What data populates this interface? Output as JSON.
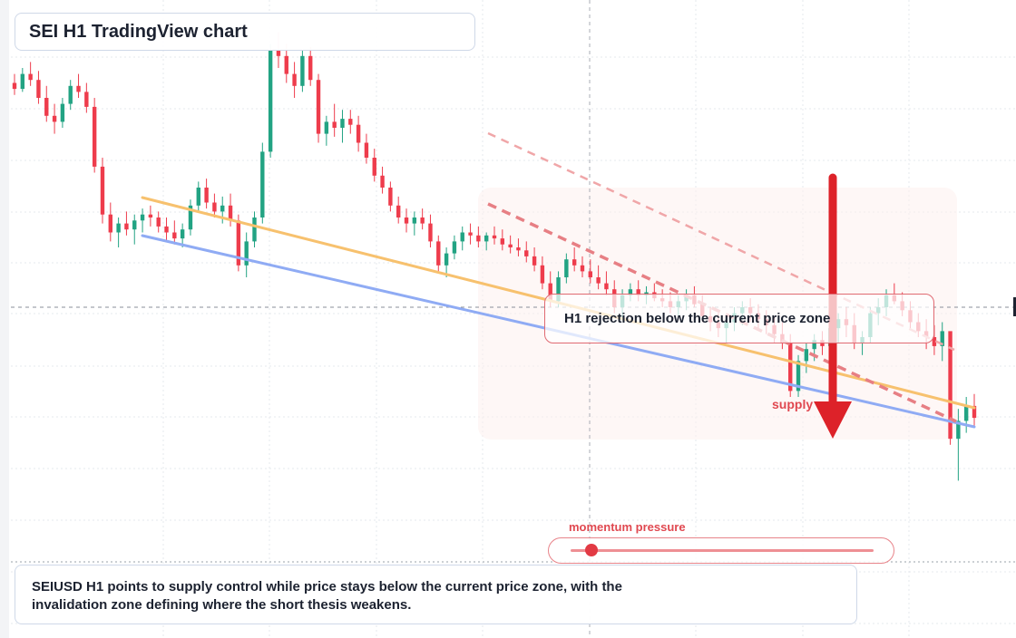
{
  "title": "SEI H1 TradingView chart",
  "annotations": {
    "zone_label": "H1 rejection below the current price zone",
    "supply_label": "supply",
    "momentum_label": "momentum pressure",
    "momentum_level": 0.07
  },
  "caption": "SEIUSD H1 points to supply control while price stays below the current price zone, with the invalidation zone defining where the short thesis weakens.",
  "colors": {
    "bull": "#22a383",
    "bear": "#ee3c4c",
    "trend_orange": "#f7c16e",
    "trend_blue": "#8fabf4",
    "channel_dash": "#e87f84",
    "arrow": "#dd2229",
    "grid": "#e5e8ee"
  },
  "chart_data": {
    "type": "candlestick",
    "symbol": "SEIUSD",
    "timeframe": "H1",
    "title": "SEI H1 TradingView chart",
    "current_price_line": 0.0,
    "ohlc_relative": [
      [
        0.75,
        0.78,
        0.71,
        0.73
      ],
      [
        0.73,
        0.8,
        0.72,
        0.78
      ],
      [
        0.78,
        0.82,
        0.74,
        0.76
      ],
      [
        0.76,
        0.79,
        0.68,
        0.7
      ],
      [
        0.7,
        0.74,
        0.62,
        0.64
      ],
      [
        0.64,
        0.68,
        0.58,
        0.62
      ],
      [
        0.62,
        0.7,
        0.6,
        0.68
      ],
      [
        0.68,
        0.76,
        0.66,
        0.74
      ],
      [
        0.74,
        0.78,
        0.7,
        0.72
      ],
      [
        0.72,
        0.75,
        0.65,
        0.67
      ],
      [
        0.67,
        0.7,
        0.45,
        0.47
      ],
      [
        0.47,
        0.5,
        0.28,
        0.31
      ],
      [
        0.31,
        0.35,
        0.22,
        0.25
      ],
      [
        0.25,
        0.3,
        0.2,
        0.28
      ],
      [
        0.28,
        0.32,
        0.24,
        0.26
      ],
      [
        0.26,
        0.31,
        0.21,
        0.29
      ],
      [
        0.29,
        0.33,
        0.25,
        0.31
      ],
      [
        0.31,
        0.34,
        0.27,
        0.3
      ],
      [
        0.3,
        0.32,
        0.25,
        0.27
      ],
      [
        0.27,
        0.3,
        0.22,
        0.25
      ],
      [
        0.25,
        0.29,
        0.21,
        0.23
      ],
      [
        0.23,
        0.28,
        0.2,
        0.26
      ],
      [
        0.26,
        0.36,
        0.24,
        0.34
      ],
      [
        0.34,
        0.42,
        0.32,
        0.4
      ],
      [
        0.4,
        0.43,
        0.33,
        0.35
      ],
      [
        0.35,
        0.38,
        0.3,
        0.32
      ],
      [
        0.32,
        0.37,
        0.28,
        0.34
      ],
      [
        0.34,
        0.38,
        0.27,
        0.29
      ],
      [
        0.29,
        0.31,
        0.12,
        0.14
      ],
      [
        0.14,
        0.25,
        0.1,
        0.22
      ],
      [
        0.22,
        0.32,
        0.2,
        0.3
      ],
      [
        0.3,
        0.55,
        0.28,
        0.52
      ],
      [
        0.52,
        0.88,
        0.5,
        0.86
      ],
      [
        0.86,
        0.92,
        0.8,
        0.84
      ],
      [
        0.84,
        0.88,
        0.75,
        0.78
      ],
      [
        0.78,
        0.82,
        0.7,
        0.74
      ],
      [
        0.74,
        0.86,
        0.72,
        0.84
      ],
      [
        0.84,
        0.87,
        0.74,
        0.76
      ],
      [
        0.76,
        0.78,
        0.55,
        0.58
      ],
      [
        0.58,
        0.64,
        0.54,
        0.62
      ],
      [
        0.62,
        0.68,
        0.57,
        0.6
      ],
      [
        0.6,
        0.66,
        0.55,
        0.63
      ],
      [
        0.63,
        0.66,
        0.58,
        0.61
      ],
      [
        0.61,
        0.64,
        0.52,
        0.55
      ],
      [
        0.55,
        0.58,
        0.48,
        0.5
      ],
      [
        0.5,
        0.53,
        0.42,
        0.44
      ],
      [
        0.44,
        0.47,
        0.38,
        0.4
      ],
      [
        0.4,
        0.42,
        0.32,
        0.34
      ],
      [
        0.34,
        0.37,
        0.28,
        0.3
      ],
      [
        0.3,
        0.33,
        0.25,
        0.28
      ],
      [
        0.28,
        0.32,
        0.24,
        0.3
      ],
      [
        0.3,
        0.33,
        0.26,
        0.28
      ],
      [
        0.28,
        0.31,
        0.2,
        0.22
      ],
      [
        0.22,
        0.24,
        0.12,
        0.14
      ],
      [
        0.14,
        0.2,
        0.1,
        0.18
      ],
      [
        0.18,
        0.24,
        0.16,
        0.22
      ],
      [
        0.22,
        0.27,
        0.19,
        0.25
      ],
      [
        0.25,
        0.28,
        0.21,
        0.24
      ],
      [
        0.24,
        0.27,
        0.2,
        0.22
      ],
      [
        0.22,
        0.25,
        0.19,
        0.24
      ],
      [
        0.24,
        0.27,
        0.21,
        0.23
      ],
      [
        0.23,
        0.26,
        0.19,
        0.21
      ],
      [
        0.21,
        0.24,
        0.18,
        0.2
      ],
      [
        0.2,
        0.23,
        0.17,
        0.19
      ],
      [
        0.19,
        0.22,
        0.15,
        0.17
      ],
      [
        0.17,
        0.2,
        0.12,
        0.14
      ],
      [
        0.14,
        0.17,
        0.06,
        0.08
      ],
      [
        0.08,
        0.12,
        0.0,
        0.02
      ],
      [
        0.02,
        0.12,
        0.0,
        0.1
      ],
      [
        0.1,
        0.18,
        0.08,
        0.16
      ],
      [
        0.16,
        0.2,
        0.12,
        0.14
      ],
      [
        0.14,
        0.17,
        0.1,
        0.12
      ],
      [
        0.12,
        0.16,
        0.08,
        0.1
      ],
      [
        0.1,
        0.14,
        0.06,
        0.08
      ],
      [
        0.08,
        0.12,
        0.04,
        0.06
      ],
      [
        0.06,
        0.09,
        -0.02,
        0.0
      ],
      [
        0.0,
        0.06,
        -0.04,
        0.04
      ],
      [
        0.04,
        0.08,
        0.02,
        0.06
      ],
      [
        0.06,
        0.09,
        0.02,
        0.04
      ],
      [
        0.04,
        0.07,
        0.01,
        0.05
      ],
      [
        0.05,
        0.08,
        0.02,
        0.03
      ],
      [
        0.03,
        0.06,
        0.0,
        0.02
      ],
      [
        0.02,
        0.05,
        -0.02,
        0.0
      ],
      [
        0.0,
        0.04,
        -0.03,
        0.02
      ],
      [
        0.02,
        0.06,
        -0.01,
        0.04
      ],
      [
        0.04,
        0.07,
        0.0,
        0.01
      ],
      [
        0.01,
        0.04,
        -0.05,
        -0.03
      ],
      [
        -0.03,
        0.0,
        -0.08,
        -0.05
      ],
      [
        -0.05,
        -0.02,
        -0.1,
        -0.07
      ],
      [
        -0.07,
        -0.03,
        -0.12,
        -0.05
      ],
      [
        -0.05,
        0.0,
        -0.08,
        -0.02
      ],
      [
        -0.02,
        0.02,
        -0.06,
        0.0
      ],
      [
        0.0,
        0.03,
        -0.05,
        -0.02
      ],
      [
        -0.02,
        0.01,
        -0.07,
        -0.04
      ],
      [
        -0.04,
        -0.01,
        -0.09,
        -0.06
      ],
      [
        -0.06,
        -0.03,
        -0.12,
        -0.09
      ],
      [
        -0.09,
        -0.05,
        -0.14,
        -0.12
      ],
      [
        -0.12,
        -0.09,
        -0.3,
        -0.28
      ],
      [
        -0.28,
        -0.16,
        -0.3,
        -0.18
      ],
      [
        -0.18,
        -0.12,
        -0.22,
        -0.14
      ],
      [
        -0.14,
        -0.09,
        -0.18,
        -0.11
      ],
      [
        -0.11,
        -0.08,
        -0.16,
        -0.13
      ],
      [
        -0.13,
        -0.05,
        -0.16,
        -0.07
      ],
      [
        -0.07,
        -0.02,
        -0.12,
        -0.04
      ],
      [
        -0.04,
        0.0,
        -0.1,
        -0.06
      ],
      [
        -0.06,
        -0.02,
        -0.14,
        -0.12
      ],
      [
        -0.12,
        -0.08,
        -0.16,
        -0.1
      ],
      [
        -0.1,
        0.0,
        -0.12,
        -0.02
      ],
      [
        -0.02,
        0.03,
        -0.06,
        0.0
      ],
      [
        0.0,
        0.06,
        -0.03,
        0.04
      ],
      [
        0.04,
        0.08,
        0.01,
        0.02
      ],
      [
        0.02,
        0.05,
        -0.03,
        -0.01
      ],
      [
        -0.01,
        0.02,
        -0.07,
        -0.05
      ],
      [
        -0.05,
        -0.02,
        -0.1,
        -0.08
      ],
      [
        -0.08,
        -0.04,
        -0.14,
        -0.1
      ],
      [
        -0.1,
        -0.06,
        -0.16,
        -0.13
      ],
      [
        -0.13,
        -0.05,
        -0.18,
        -0.08
      ],
      [
        -0.08,
        -0.2,
        -0.46,
        -0.44
      ],
      [
        -0.44,
        -0.34,
        -0.58,
        -0.38
      ],
      [
        -0.38,
        -0.3,
        -0.42,
        -0.33
      ],
      [
        -0.33,
        -0.29,
        -0.4,
        -0.37
      ]
    ]
  }
}
